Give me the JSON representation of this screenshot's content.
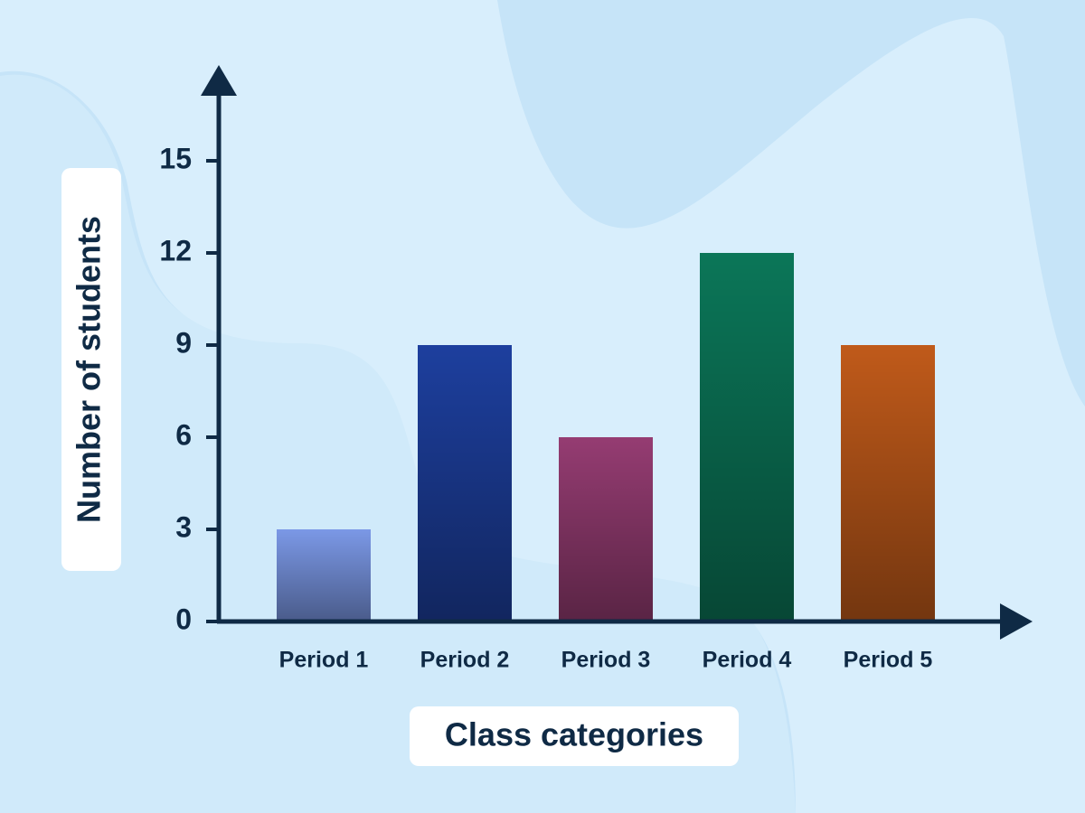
{
  "chart_data": {
    "type": "bar",
    "x_label": "Class categories",
    "y_label": "Number of students",
    "categories": [
      "Period 1",
      "Period 2",
      "Period 3",
      "Period 4",
      "Period 5"
    ],
    "values": [
      3,
      9,
      6,
      12,
      9
    ],
    "colors": [
      "#7b98e6",
      "#1d3f9e",
      "#953c72",
      "#0b7658",
      "#c05a1a"
    ],
    "ylim": [
      0,
      18
    ],
    "yticks": [
      0,
      3,
      6,
      9,
      12,
      15
    ],
    "grid": false
  }
}
